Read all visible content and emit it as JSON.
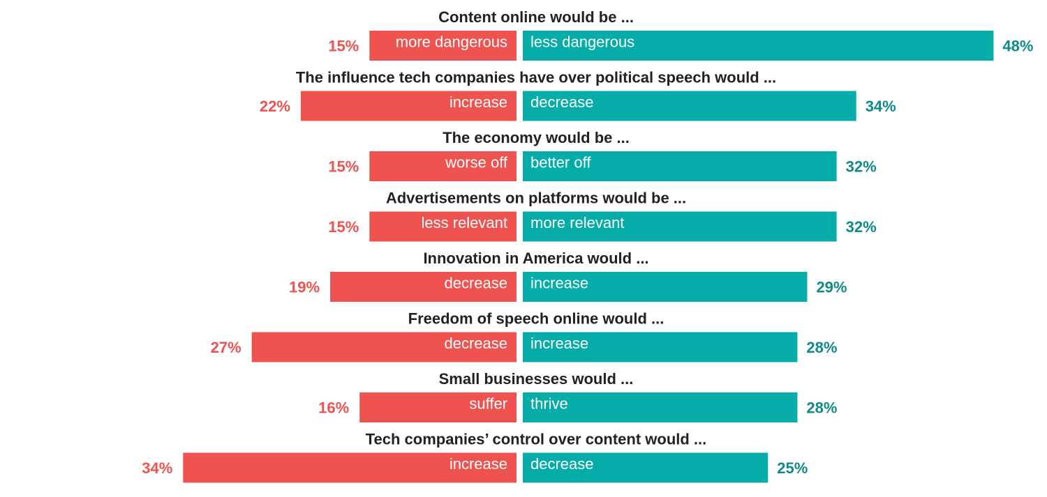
{
  "chart_data": {
    "type": "bar",
    "orientation": "diverging-horizontal",
    "colors": {
      "negative": "#ef5350",
      "positive": "#06ada8",
      "negative_text": "#ef5350",
      "positive_text": "#0e8a87",
      "heading_text": "#222222"
    },
    "rows": [
      {
        "title": "Content online would be ...",
        "left_label": "more dangerous",
        "left_value": 15,
        "left_text": "15%",
        "right_label": "less dangerous",
        "right_value": 48,
        "right_text": "48%"
      },
      {
        "title": "The influence tech companies have over political speech would ...",
        "left_label": "increase",
        "left_value": 22,
        "left_text": "22%",
        "right_label": "decrease",
        "right_value": 34,
        "right_text": "34%"
      },
      {
        "title": "The economy would be ...",
        "left_label": "worse off",
        "left_value": 15,
        "left_text": "15%",
        "right_label": "better off",
        "right_value": 32,
        "right_text": "32%"
      },
      {
        "title": "Advertisements on platforms would be ...",
        "left_label": "less relevant",
        "left_value": 15,
        "left_text": "15%",
        "right_label": "more relevant",
        "right_value": 32,
        "right_text": "32%"
      },
      {
        "title": "Innovation in America would ...",
        "left_label": "decrease",
        "left_value": 19,
        "left_text": "19%",
        "right_label": "increase",
        "right_value": 29,
        "right_text": "29%"
      },
      {
        "title": "Freedom of speech online would  ...",
        "left_label": "decrease",
        "left_value": 27,
        "left_text": "27%",
        "right_label": "increase",
        "right_value": 28,
        "right_text": "28%"
      },
      {
        "title": "Small businesses would ...",
        "left_label": "suffer",
        "left_value": 16,
        "left_text": "16%",
        "right_label": "thrive",
        "right_value": 28,
        "right_text": "28%"
      },
      {
        "title": "Tech companies’ control over content would ...",
        "left_label": "increase",
        "left_value": 34,
        "left_text": "34%",
        "right_label": "decrease",
        "right_value": 25,
        "right_text": "25%"
      }
    ]
  }
}
